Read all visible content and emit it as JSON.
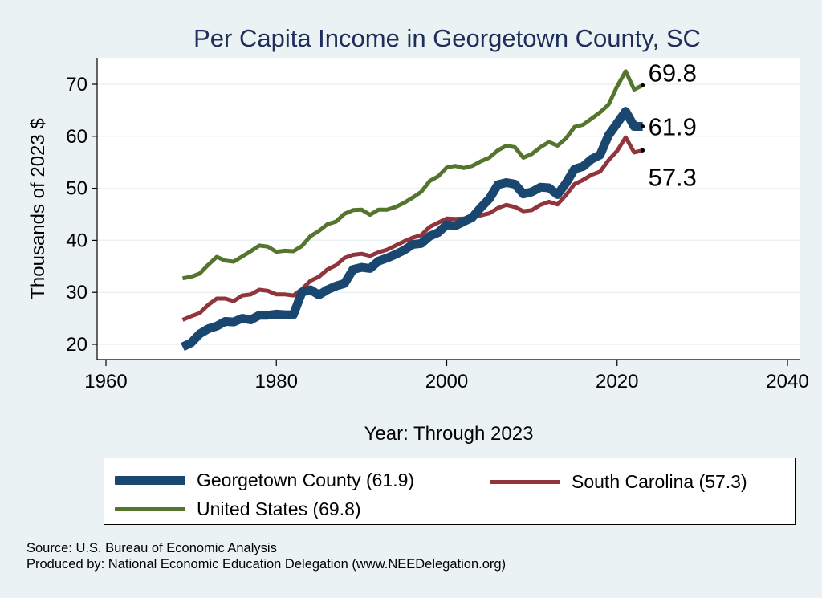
{
  "chart_data": {
    "type": "line",
    "title": "Per Capita Income in Georgetown County, SC",
    "xlabel": "Year: Through 2023",
    "ylabel": "Thousands of 2023 $",
    "xlim": [
      1960,
      2040
    ],
    "ylim": [
      20,
      70
    ],
    "x_ticks": [
      1960,
      1980,
      2000,
      2020,
      2040
    ],
    "y_ticks": [
      20,
      30,
      40,
      50,
      60,
      70
    ],
    "grid": true,
    "legend_position": "bottom",
    "x": [
      1969,
      1970,
      1971,
      1972,
      1973,
      1974,
      1975,
      1976,
      1977,
      1978,
      1979,
      1980,
      1981,
      1982,
      1983,
      1984,
      1985,
      1986,
      1987,
      1988,
      1989,
      1990,
      1991,
      1992,
      1993,
      1994,
      1995,
      1996,
      1997,
      1998,
      1999,
      2000,
      2001,
      2002,
      2003,
      2004,
      2005,
      2006,
      2007,
      2008,
      2009,
      2010,
      2011,
      2012,
      2013,
      2014,
      2015,
      2016,
      2017,
      2018,
      2019,
      2020,
      2021,
      2022,
      2023
    ],
    "series": [
      {
        "name": "Georgetown County (61.9)",
        "color": "#1a476f",
        "end_label": "61.9",
        "values": [
          19.5,
          20.3,
          22.0,
          23.0,
          23.5,
          24.4,
          24.3,
          25.0,
          24.7,
          25.6,
          25.6,
          25.8,
          25.7,
          25.7,
          30.0,
          30.5,
          29.5,
          30.5,
          31.2,
          31.7,
          34.4,
          34.8,
          34.6,
          36.0,
          36.6,
          37.3,
          38.1,
          39.2,
          39.4,
          40.8,
          41.5,
          43.0,
          42.8,
          43.6,
          44.4,
          46.3,
          48.0,
          50.7,
          51.1,
          50.8,
          48.9,
          49.3,
          50.2,
          50.1,
          48.8,
          51.0,
          53.7,
          54.2,
          55.6,
          56.4,
          60.2,
          62.5,
          64.8,
          61.9,
          61.9
        ]
      },
      {
        "name": "South Carolina (57.3)",
        "color": "#90353b",
        "end_label": "57.3",
        "values": [
          24.7,
          25.4,
          26.0,
          27.6,
          28.8,
          28.8,
          28.3,
          29.4,
          29.6,
          30.5,
          30.3,
          29.6,
          29.6,
          29.4,
          30.6,
          32.2,
          33.0,
          34.4,
          35.2,
          36.6,
          37.2,
          37.4,
          37.0,
          37.7,
          38.2,
          39.0,
          39.8,
          40.5,
          41.0,
          42.6,
          43.4,
          44.2,
          44.1,
          44.2,
          44.4,
          44.8,
          45.2,
          46.2,
          46.8,
          46.4,
          45.6,
          45.8,
          46.8,
          47.4,
          46.9,
          48.7,
          50.8,
          51.6,
          52.6,
          53.2,
          55.4,
          57.2,
          59.8,
          56.9,
          57.3
        ]
      },
      {
        "name": "United States (69.8)",
        "color": "#55752f",
        "end_label": "69.8",
        "values": [
          32.7,
          33.0,
          33.6,
          35.3,
          36.8,
          36.1,
          35.9,
          36.9,
          37.9,
          39.0,
          38.8,
          37.8,
          38.0,
          37.9,
          38.9,
          40.8,
          41.8,
          43.1,
          43.6,
          45.1,
          45.8,
          45.9,
          44.9,
          45.9,
          45.9,
          46.4,
          47.2,
          48.2,
          49.3,
          51.4,
          52.3,
          54.0,
          54.3,
          53.9,
          54.3,
          55.2,
          55.9,
          57.3,
          58.2,
          57.9,
          55.9,
          56.6,
          57.9,
          58.9,
          58.2,
          59.6,
          61.8,
          62.2,
          63.4,
          64.6,
          66.1,
          69.6,
          72.5,
          69.0,
          69.8
        ]
      }
    ]
  },
  "legend": {
    "items": [
      {
        "label": "Georgetown County (61.9)"
      },
      {
        "label": "South Carolina (57.3)"
      },
      {
        "label": "United States (69.8)"
      }
    ]
  },
  "source": {
    "line1": "Source: U.S. Bureau of Economic Analysis",
    "line2": "Produced by: National Economic Education Delegation (www.NEEDelegation.org)"
  }
}
